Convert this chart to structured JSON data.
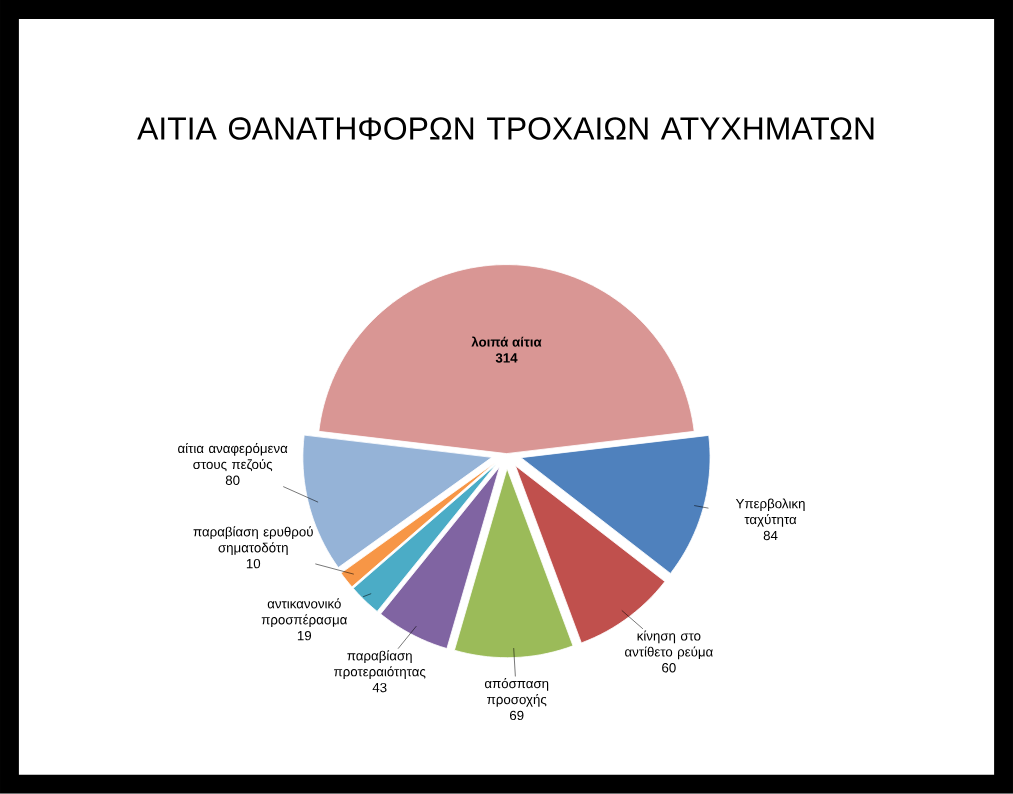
{
  "chart_data": {
    "type": "pie",
    "title": "ΑΙΤΙΑ ΘΑΝΑΤΗΦΟΡΩΝ ΤΡΟΧΑΙΩΝ ΑΤΥΧΗΜΑΤΩΝ",
    "categories": [
      "λοιπά αίτια",
      "Υπερβολικη ταχύτητα",
      "κίνηση στο αντίθετο ρεύμα",
      "απόσπαση προσοχής",
      "παραβίαση προτεραιότητας",
      "αντικανονικό προσπέρασμα",
      "παραβίαση ερυθρού σηματοδότη",
      "αίτια αναφερόμενα στους πεζούς"
    ],
    "values": [
      314,
      84,
      60,
      69,
      43,
      19,
      10,
      80
    ],
    "colors": [
      "#d99694",
      "#4f81bd",
      "#c0504d",
      "#9bbb59",
      "#8064a2",
      "#4bacc6",
      "#f79646",
      "#95b3d7"
    ],
    "data_labels": true
  }
}
